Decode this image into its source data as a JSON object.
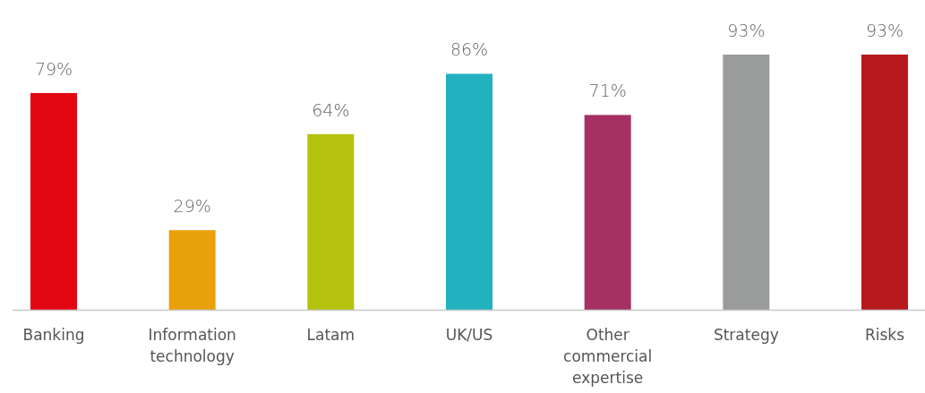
{
  "chart_data": {
    "type": "bar",
    "categories": [
      "Banking",
      "Information technology",
      "Latam",
      "UK/US",
      "Other commercial expertise",
      "Strategy",
      "Risks"
    ],
    "values": [
      79,
      29,
      64,
      86,
      71,
      93,
      93
    ],
    "colors": [
      "#e30613",
      "#e8a10b",
      "#b5c20e",
      "#22b1bf",
      "#a53064",
      "#9a9c9b",
      "#b5191c"
    ],
    "value_labels": [
      "79%",
      "29%",
      "64%",
      "86%",
      "71%",
      "93%",
      "93%"
    ]
  }
}
